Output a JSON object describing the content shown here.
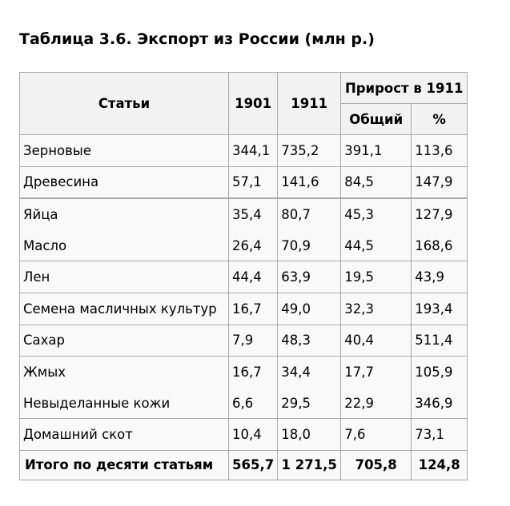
{
  "title": "Таблица 3.6. Экспорт из России (млн р.)",
  "table": {
    "headers": {
      "items": "Статьи",
      "year_1901": "1901",
      "year_1911": "1911",
      "growth": "Прирост в 1911",
      "growth_total": "Общий",
      "growth_percent": "%"
    },
    "rows": [
      {
        "item": "Зерновые",
        "v1901": "344,1",
        "v1911": "735,2",
        "growth_total": "391,1",
        "growth_percent": "113,6"
      },
      {
        "item": "Древесина",
        "v1901": "57,1",
        "v1911": "141,6",
        "growth_total": "84,5",
        "growth_percent": "147,9"
      },
      {
        "item": "Яйца",
        "v1901": "35,4",
        "v1911": "80,7",
        "growth_total": "45,3",
        "growth_percent": "127,9"
      },
      {
        "item": "Масло",
        "v1901": "26,4",
        "v1911": "70,9",
        "growth_total": "44,5",
        "growth_percent": "168,6"
      },
      {
        "item": "Лен",
        "v1901": "44,4",
        "v1911": "63,9",
        "growth_total": "19,5",
        "growth_percent": "43,9"
      },
      {
        "item": "Семена масличных культур",
        "v1901": "16,7",
        "v1911": "49,0",
        "growth_total": "32,3",
        "growth_percent": "193,4"
      },
      {
        "item": "Сахар",
        "v1901": "7,9",
        "v1911": "48,3",
        "growth_total": "40,4",
        "growth_percent": "511,4"
      },
      {
        "item": "Жмых",
        "v1901": "16,7",
        "v1911": "34,4",
        "growth_total": "17,7",
        "growth_percent": "105,9"
      },
      {
        "item": "Невыделанные кожи",
        "v1901": "6,6",
        "v1911": "29,5",
        "growth_total": "22,9",
        "growth_percent": "346,9"
      },
      {
        "item": "Домашний скот",
        "v1901": "10,4",
        "v1911": "18,0",
        "growth_total": "7,6",
        "growth_percent": "73,1"
      }
    ],
    "total": {
      "item": "Итого по десяти статьям",
      "v1901": "565,7",
      "v1911": "1 271,5",
      "growth_total": "705,8",
      "growth_percent": "124,8"
    }
  }
}
